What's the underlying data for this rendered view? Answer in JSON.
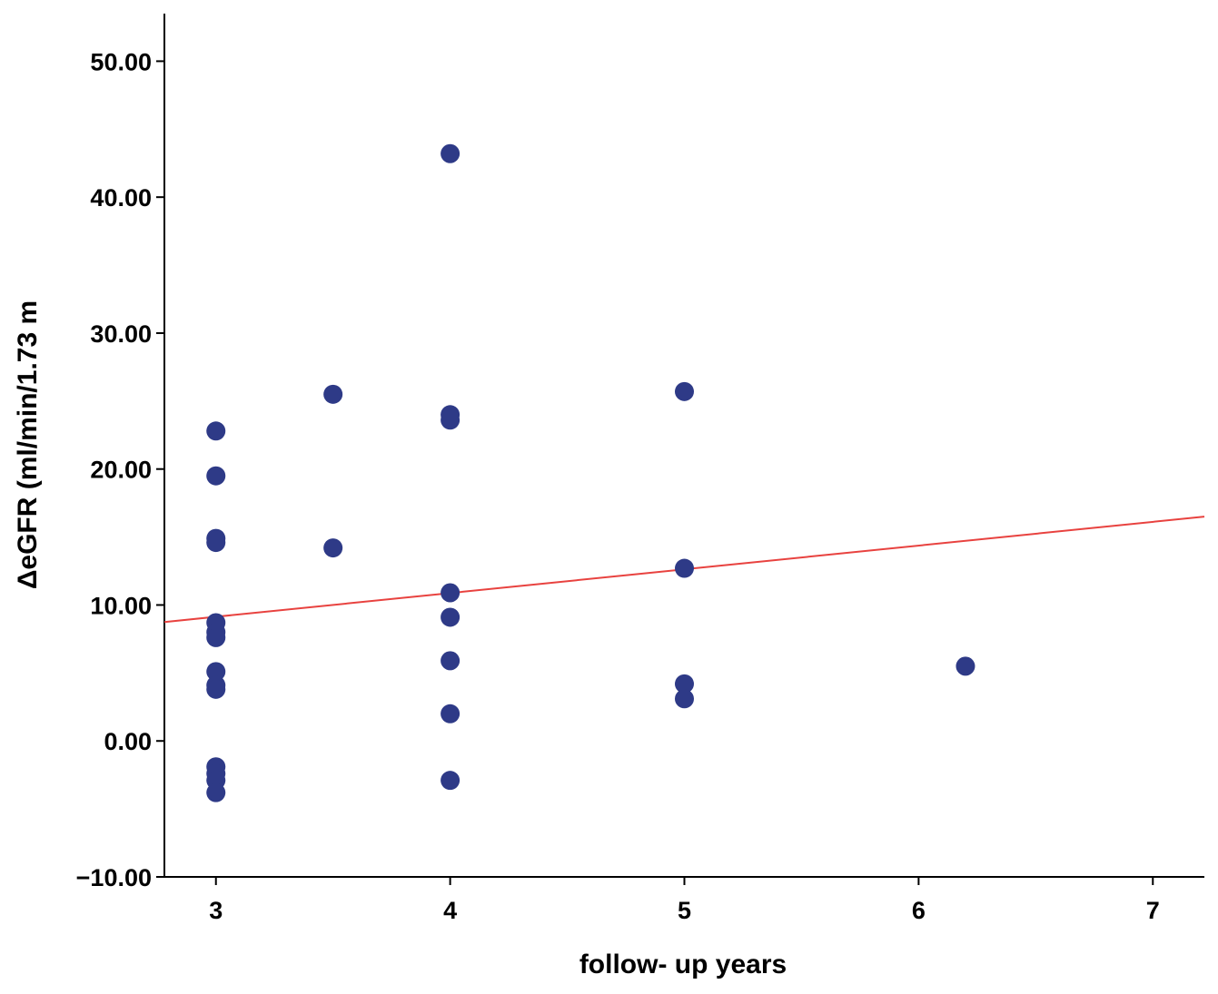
{
  "chart_data": {
    "type": "scatter",
    "title": "",
    "xlabel": "follow- up years",
    "ylabel": "ΔeGFR (ml/min/1.73 m",
    "xlim": [
      2.78,
      7.22
    ],
    "ylim": [
      -10,
      53.5
    ],
    "xticks": [
      {
        "value": 3,
        "label": "3"
      },
      {
        "value": 4,
        "label": "4"
      },
      {
        "value": 5,
        "label": "5"
      },
      {
        "value": 6,
        "label": "6"
      },
      {
        "value": 7,
        "label": "7"
      }
    ],
    "yticks": [
      {
        "value": -10,
        "label": "−10.00"
      },
      {
        "value": 0,
        "label": "0.00"
      },
      {
        "value": 10,
        "label": "10.00"
      },
      {
        "value": 20,
        "label": "20.00"
      },
      {
        "value": 30,
        "label": "30.00"
      },
      {
        "value": 40,
        "label": "40.00"
      },
      {
        "value": 50,
        "label": "50.00"
      }
    ],
    "grid": false,
    "legend": "none",
    "point_color": "#2e3a87",
    "fit_line_color": "#e8423f",
    "fit_line": [
      {
        "x": 2.78,
        "y": 8.75
      },
      {
        "x": 7.22,
        "y": 16.5
      }
    ],
    "points": [
      {
        "x": 3,
        "y": 22.8
      },
      {
        "x": 3,
        "y": 19.5
      },
      {
        "x": 3,
        "y": 14.9
      },
      {
        "x": 3,
        "y": 14.6
      },
      {
        "x": 3,
        "y": 8.7
      },
      {
        "x": 3,
        "y": 8.0
      },
      {
        "x": 3,
        "y": 7.6
      },
      {
        "x": 3,
        "y": 5.1
      },
      {
        "x": 3,
        "y": 4.1
      },
      {
        "x": 3,
        "y": 3.8
      },
      {
        "x": 3,
        "y": -1.9
      },
      {
        "x": 3,
        "y": -2.4
      },
      {
        "x": 3,
        "y": -2.9
      },
      {
        "x": 3,
        "y": -3.8
      },
      {
        "x": 3.5,
        "y": 25.5
      },
      {
        "x": 3.5,
        "y": 14.2
      },
      {
        "x": 4,
        "y": 43.2
      },
      {
        "x": 4,
        "y": 24.0
      },
      {
        "x": 4,
        "y": 23.6
      },
      {
        "x": 4,
        "y": 10.9
      },
      {
        "x": 4,
        "y": 9.1
      },
      {
        "x": 4,
        "y": 5.9
      },
      {
        "x": 4,
        "y": 2.0
      },
      {
        "x": 4,
        "y": -2.9
      },
      {
        "x": 5,
        "y": 25.7
      },
      {
        "x": 5,
        "y": 12.7
      },
      {
        "x": 5,
        "y": 4.2
      },
      {
        "x": 5,
        "y": 3.1
      },
      {
        "x": 6.2,
        "y": 5.5
      }
    ]
  }
}
